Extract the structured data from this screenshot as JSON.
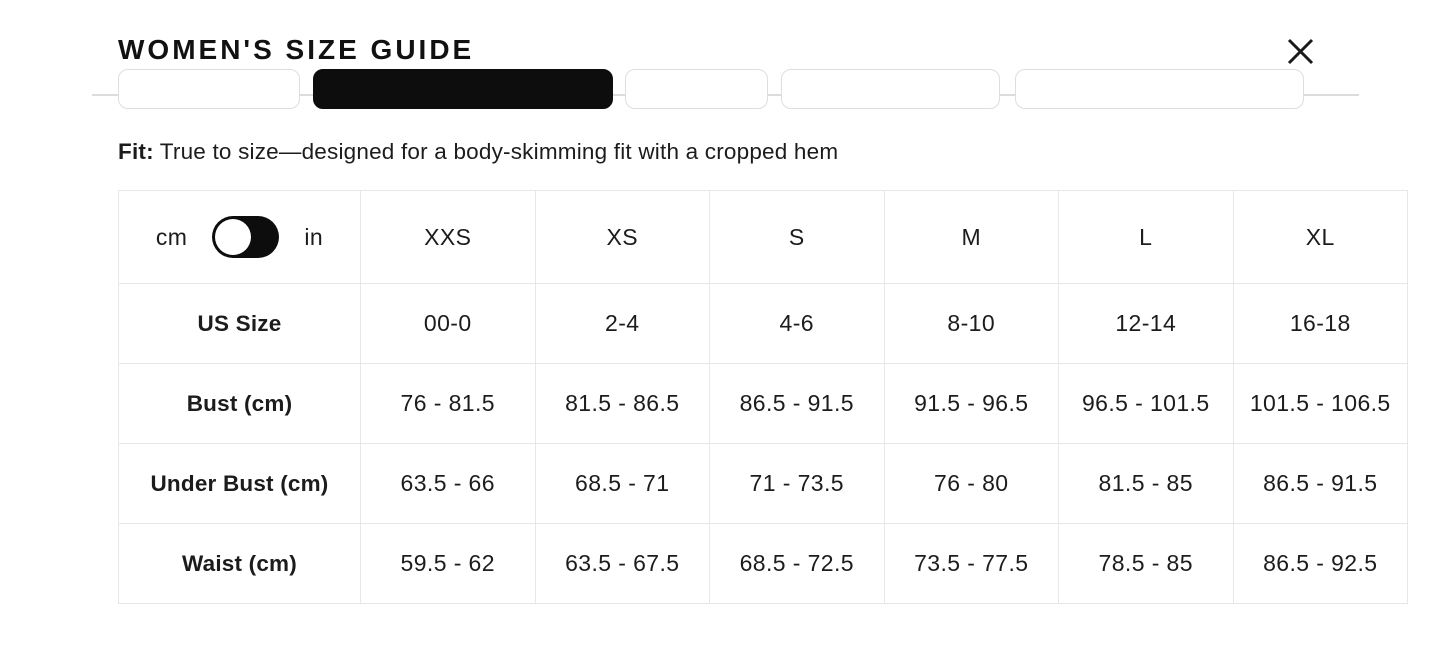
{
  "header": {
    "title": "WOMEN'S SIZE GUIDE",
    "close_icon": "x-mark"
  },
  "tabs": {
    "items": [
      {
        "selected": false
      },
      {
        "selected": true
      },
      {
        "selected": false
      },
      {
        "selected": false
      },
      {
        "selected": false
      }
    ]
  },
  "fit": {
    "label": "Fit:",
    "text": "True to size—designed for a body-skimming fit with a cropped hem"
  },
  "size_table": {
    "unit_toggle": {
      "left_label": "cm",
      "right_label": "in",
      "selected": "cm"
    },
    "columns": [
      "XXS",
      "XS",
      "S",
      "M",
      "L",
      "XL"
    ],
    "rows": [
      {
        "label": "US Size",
        "values": [
          "00-0",
          "2-4",
          "4-6",
          "8-10",
          "12-14",
          "16-18"
        ]
      },
      {
        "label": "Bust (cm)",
        "values": [
          "76 - 81.5",
          "81.5 - 86.5",
          "86.5 - 91.5",
          "91.5 - 96.5",
          "96.5 - 101.5",
          "101.5 - 106.5"
        ]
      },
      {
        "label": "Under Bust (cm)",
        "values": [
          "63.5 - 66",
          "68.5 - 71",
          "71 - 73.5",
          "76 - 80",
          "81.5 - 85",
          "86.5 - 91.5"
        ]
      },
      {
        "label": "Waist (cm)",
        "values": [
          "59.5 - 62",
          "63.5 - 67.5",
          "68.5 - 72.5",
          "73.5 - 77.5",
          "78.5 - 85",
          "86.5 - 92.5"
        ]
      }
    ]
  },
  "colors": {
    "accent_black": "#0d0d0d",
    "border_gray": "#e7e7e7",
    "divider_gray": "#dcdcdc",
    "text": "#1c1c1c"
  }
}
